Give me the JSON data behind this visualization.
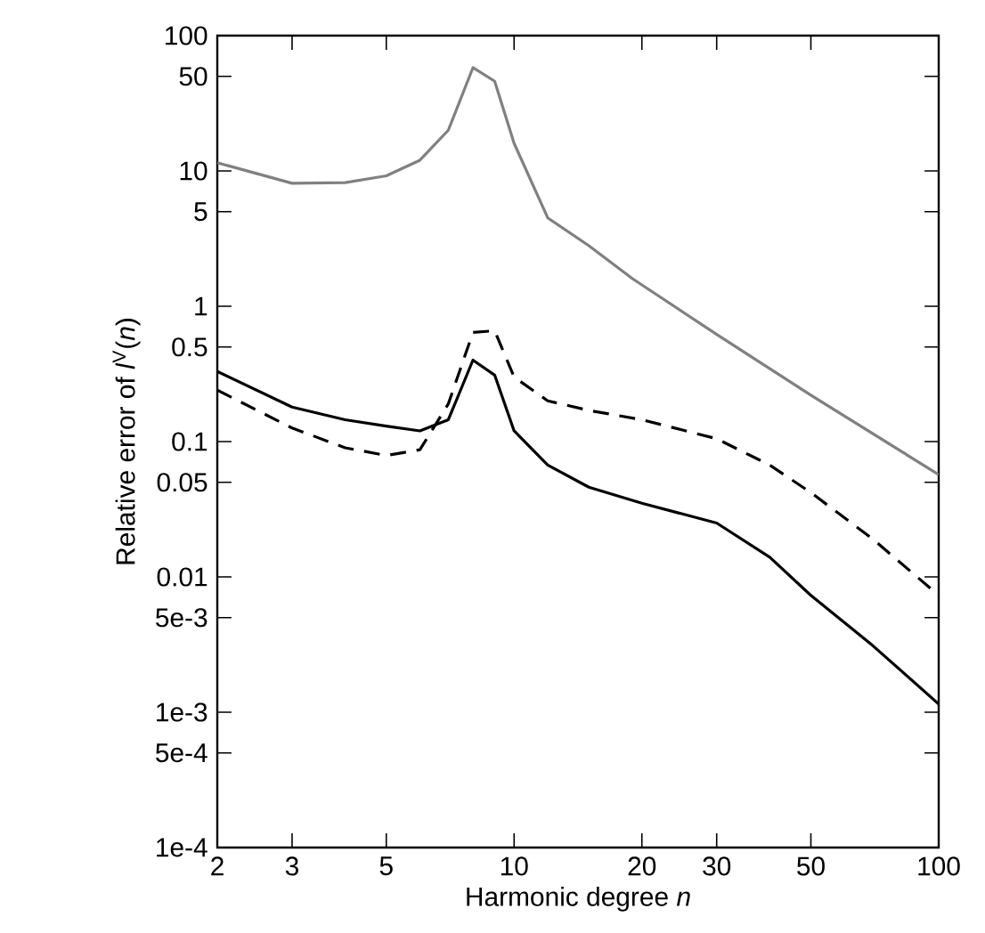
{
  "chart_data": {
    "type": "line",
    "xlabel": "Harmonic degree *n*",
    "ylabel": "Relative error of *l*$^{V}$(*n*)",
    "log": "xy",
    "marker": "none",
    "xlim": [
      2,
      100
    ],
    "ylim": [
      0.0001,
      100
    ],
    "xticks": [
      2,
      3,
      5,
      10,
      20,
      30,
      50,
      100
    ],
    "yticks": [
      {
        "value": 0.0001,
        "label": "1e-4"
      },
      {
        "value": 0.0005,
        "label": "5e-4"
      },
      {
        "value": 0.001,
        "label": "1e-3"
      },
      {
        "value": 0.005,
        "label": "5e-3"
      },
      0.01,
      0.05,
      0.1,
      0.5,
      1,
      5,
      10,
      50,
      100
    ],
    "series": [
      {
        "color": "#808080",
        "line_style": "solid",
        "x": [
          2,
          3,
          4,
          5,
          6,
          7,
          8,
          9,
          10,
          12,
          15,
          19,
          30,
          50,
          100
        ],
        "values": [
          11.5,
          8.1,
          8.2,
          9.2,
          12,
          20,
          58,
          46,
          16,
          4.5,
          2.8,
          1.6,
          0.62,
          0.22,
          0.057
        ]
      },
      {
        "color": "#000000",
        "line_style": "solid",
        "x": [
          2,
          3,
          4,
          5,
          6,
          7,
          8,
          9,
          10,
          12,
          15,
          20,
          30,
          40,
          50,
          70,
          100
        ],
        "values": [
          0.33,
          0.18,
          0.145,
          0.13,
          0.12,
          0.145,
          0.4,
          0.31,
          0.12,
          0.067,
          0.046,
          0.035,
          0.025,
          0.014,
          0.0073,
          0.0031,
          0.00115
        ]
      },
      {
        "color": "#000000",
        "line_style": "dashed",
        "x": [
          2,
          3,
          4,
          5,
          6,
          7,
          8,
          9,
          10,
          12,
          15,
          20,
          30,
          40,
          50,
          70,
          100
        ],
        "values": [
          0.24,
          0.126,
          0.09,
          0.079,
          0.087,
          0.19,
          0.64,
          0.66,
          0.3,
          0.2,
          0.17,
          0.145,
          0.105,
          0.067,
          0.042,
          0.019,
          0.0073
        ]
      }
    ]
  }
}
